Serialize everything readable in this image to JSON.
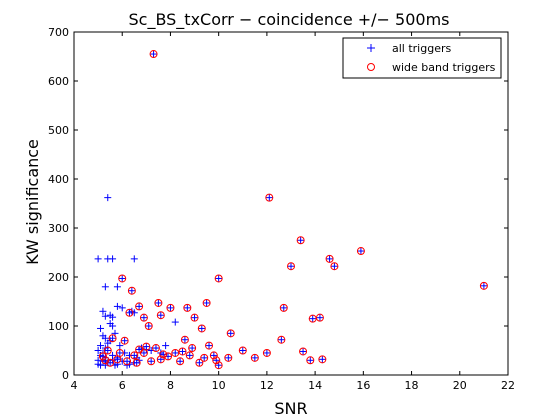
{
  "chart_data": {
    "type": "scatter",
    "title": "Sc_BS_txCorr − coincidence +/− 500ms",
    "xlabel": "SNR",
    "ylabel": "KW significance",
    "xlim": [
      4,
      22
    ],
    "ylim": [
      0,
      700
    ],
    "xticks": [
      "4",
      "6",
      "8",
      "10",
      "12",
      "14",
      "16",
      "18",
      "20",
      "22"
    ],
    "yticks": [
      "0",
      "100",
      "200",
      "300",
      "400",
      "500",
      "600",
      "700"
    ],
    "grid": false,
    "legend_position": "top-right",
    "series": [
      {
        "name": "all triggers",
        "marker": "plus",
        "color": "#0000ff",
        "points": [
          [
            5.0,
            237
          ],
          [
            5.4,
            237
          ],
          [
            5.6,
            237
          ],
          [
            6.5,
            237
          ],
          [
            5.4,
            362
          ],
          [
            5.3,
            180
          ],
          [
            5.8,
            180
          ],
          [
            5.2,
            130
          ],
          [
            5.3,
            120
          ],
          [
            5.5,
            122
          ],
          [
            5.6,
            118
          ],
          [
            5.5,
            105
          ],
          [
            5.1,
            95
          ],
          [
            5.6,
            100
          ],
          [
            5.8,
            140
          ],
          [
            6.0,
            137
          ],
          [
            6.4,
            130
          ],
          [
            6.5,
            127
          ],
          [
            5.2,
            80
          ],
          [
            5.3,
            75
          ],
          [
            5.4,
            65
          ],
          [
            5.1,
            60
          ],
          [
            5.3,
            55
          ],
          [
            5.0,
            50
          ],
          [
            5.2,
            45
          ],
          [
            5.1,
            40
          ],
          [
            5.3,
            35
          ],
          [
            5.0,
            30
          ],
          [
            5.2,
            28
          ],
          [
            5.4,
            25
          ],
          [
            5.6,
            30
          ],
          [
            5.8,
            22
          ],
          [
            6.0,
            28
          ],
          [
            6.2,
            20
          ],
          [
            6.5,
            25
          ],
          [
            6.7,
            30
          ],
          [
            5.0,
            22
          ],
          [
            5.1,
            20
          ],
          [
            5.3,
            20
          ],
          [
            5.7,
            20
          ],
          [
            6.3,
            22
          ],
          [
            5.5,
            70
          ],
          [
            5.7,
            85
          ],
          [
            5.9,
            60
          ],
          [
            6.1,
            45
          ],
          [
            6.3,
            40
          ],
          [
            5.6,
            40
          ],
          [
            5.8,
            35
          ],
          [
            6.6,
            35
          ],
          [
            6.8,
            55
          ],
          [
            7.0,
            52
          ],
          [
            7.2,
            50
          ],
          [
            7.4,
            55
          ],
          [
            7.6,
            45
          ],
          [
            7.8,
            60
          ],
          [
            8.2,
            108
          ]
        ]
      },
      {
        "name": "wide band triggers",
        "marker": "circle",
        "color": "#ff0000",
        "points": [
          [
            7.3,
            655
          ],
          [
            12.1,
            362
          ],
          [
            13.4,
            275
          ],
          [
            15.9,
            253
          ],
          [
            14.6,
            237
          ],
          [
            14.8,
            222
          ],
          [
            13.0,
            222
          ],
          [
            6.0,
            197
          ],
          [
            10.0,
            197
          ],
          [
            21.0,
            182
          ],
          [
            6.4,
            172
          ],
          [
            7.5,
            147
          ],
          [
            9.5,
            147
          ],
          [
            6.7,
            140
          ],
          [
            8.0,
            137
          ],
          [
            8.7,
            137
          ],
          [
            12.7,
            137
          ],
          [
            6.3,
            127
          ],
          [
            6.9,
            117
          ],
          [
            7.6,
            122
          ],
          [
            9.0,
            117
          ],
          [
            13.9,
            115
          ],
          [
            14.2,
            117
          ],
          [
            7.1,
            100
          ],
          [
            9.3,
            95
          ],
          [
            10.5,
            85
          ],
          [
            12.6,
            72
          ],
          [
            5.6,
            75
          ],
          [
            8.6,
            72
          ],
          [
            6.1,
            70
          ],
          [
            9.6,
            60
          ],
          [
            7.0,
            58
          ],
          [
            8.9,
            55
          ],
          [
            11.0,
            50
          ],
          [
            12.0,
            45
          ],
          [
            13.5,
            48
          ],
          [
            5.4,
            50
          ],
          [
            6.7,
            52
          ],
          [
            7.4,
            55
          ],
          [
            8.2,
            45
          ],
          [
            8.8,
            40
          ],
          [
            9.8,
            40
          ],
          [
            10.4,
            35
          ],
          [
            11.5,
            35
          ],
          [
            13.8,
            30
          ],
          [
            14.3,
            32
          ],
          [
            9.9,
            30
          ],
          [
            10.0,
            20
          ],
          [
            6.5,
            40
          ],
          [
            7.9,
            38
          ],
          [
            5.8,
            32
          ],
          [
            6.2,
            28
          ],
          [
            6.6,
            25
          ],
          [
            7.2,
            28
          ],
          [
            7.6,
            32
          ],
          [
            8.4,
            28
          ],
          [
            9.2,
            25
          ],
          [
            5.5,
            25
          ],
          [
            5.2,
            38
          ],
          [
            5.3,
            30
          ],
          [
            5.9,
            45
          ],
          [
            6.9,
            45
          ],
          [
            7.7,
            42
          ],
          [
            8.5,
            48
          ],
          [
            9.4,
            35
          ]
        ]
      }
    ]
  }
}
